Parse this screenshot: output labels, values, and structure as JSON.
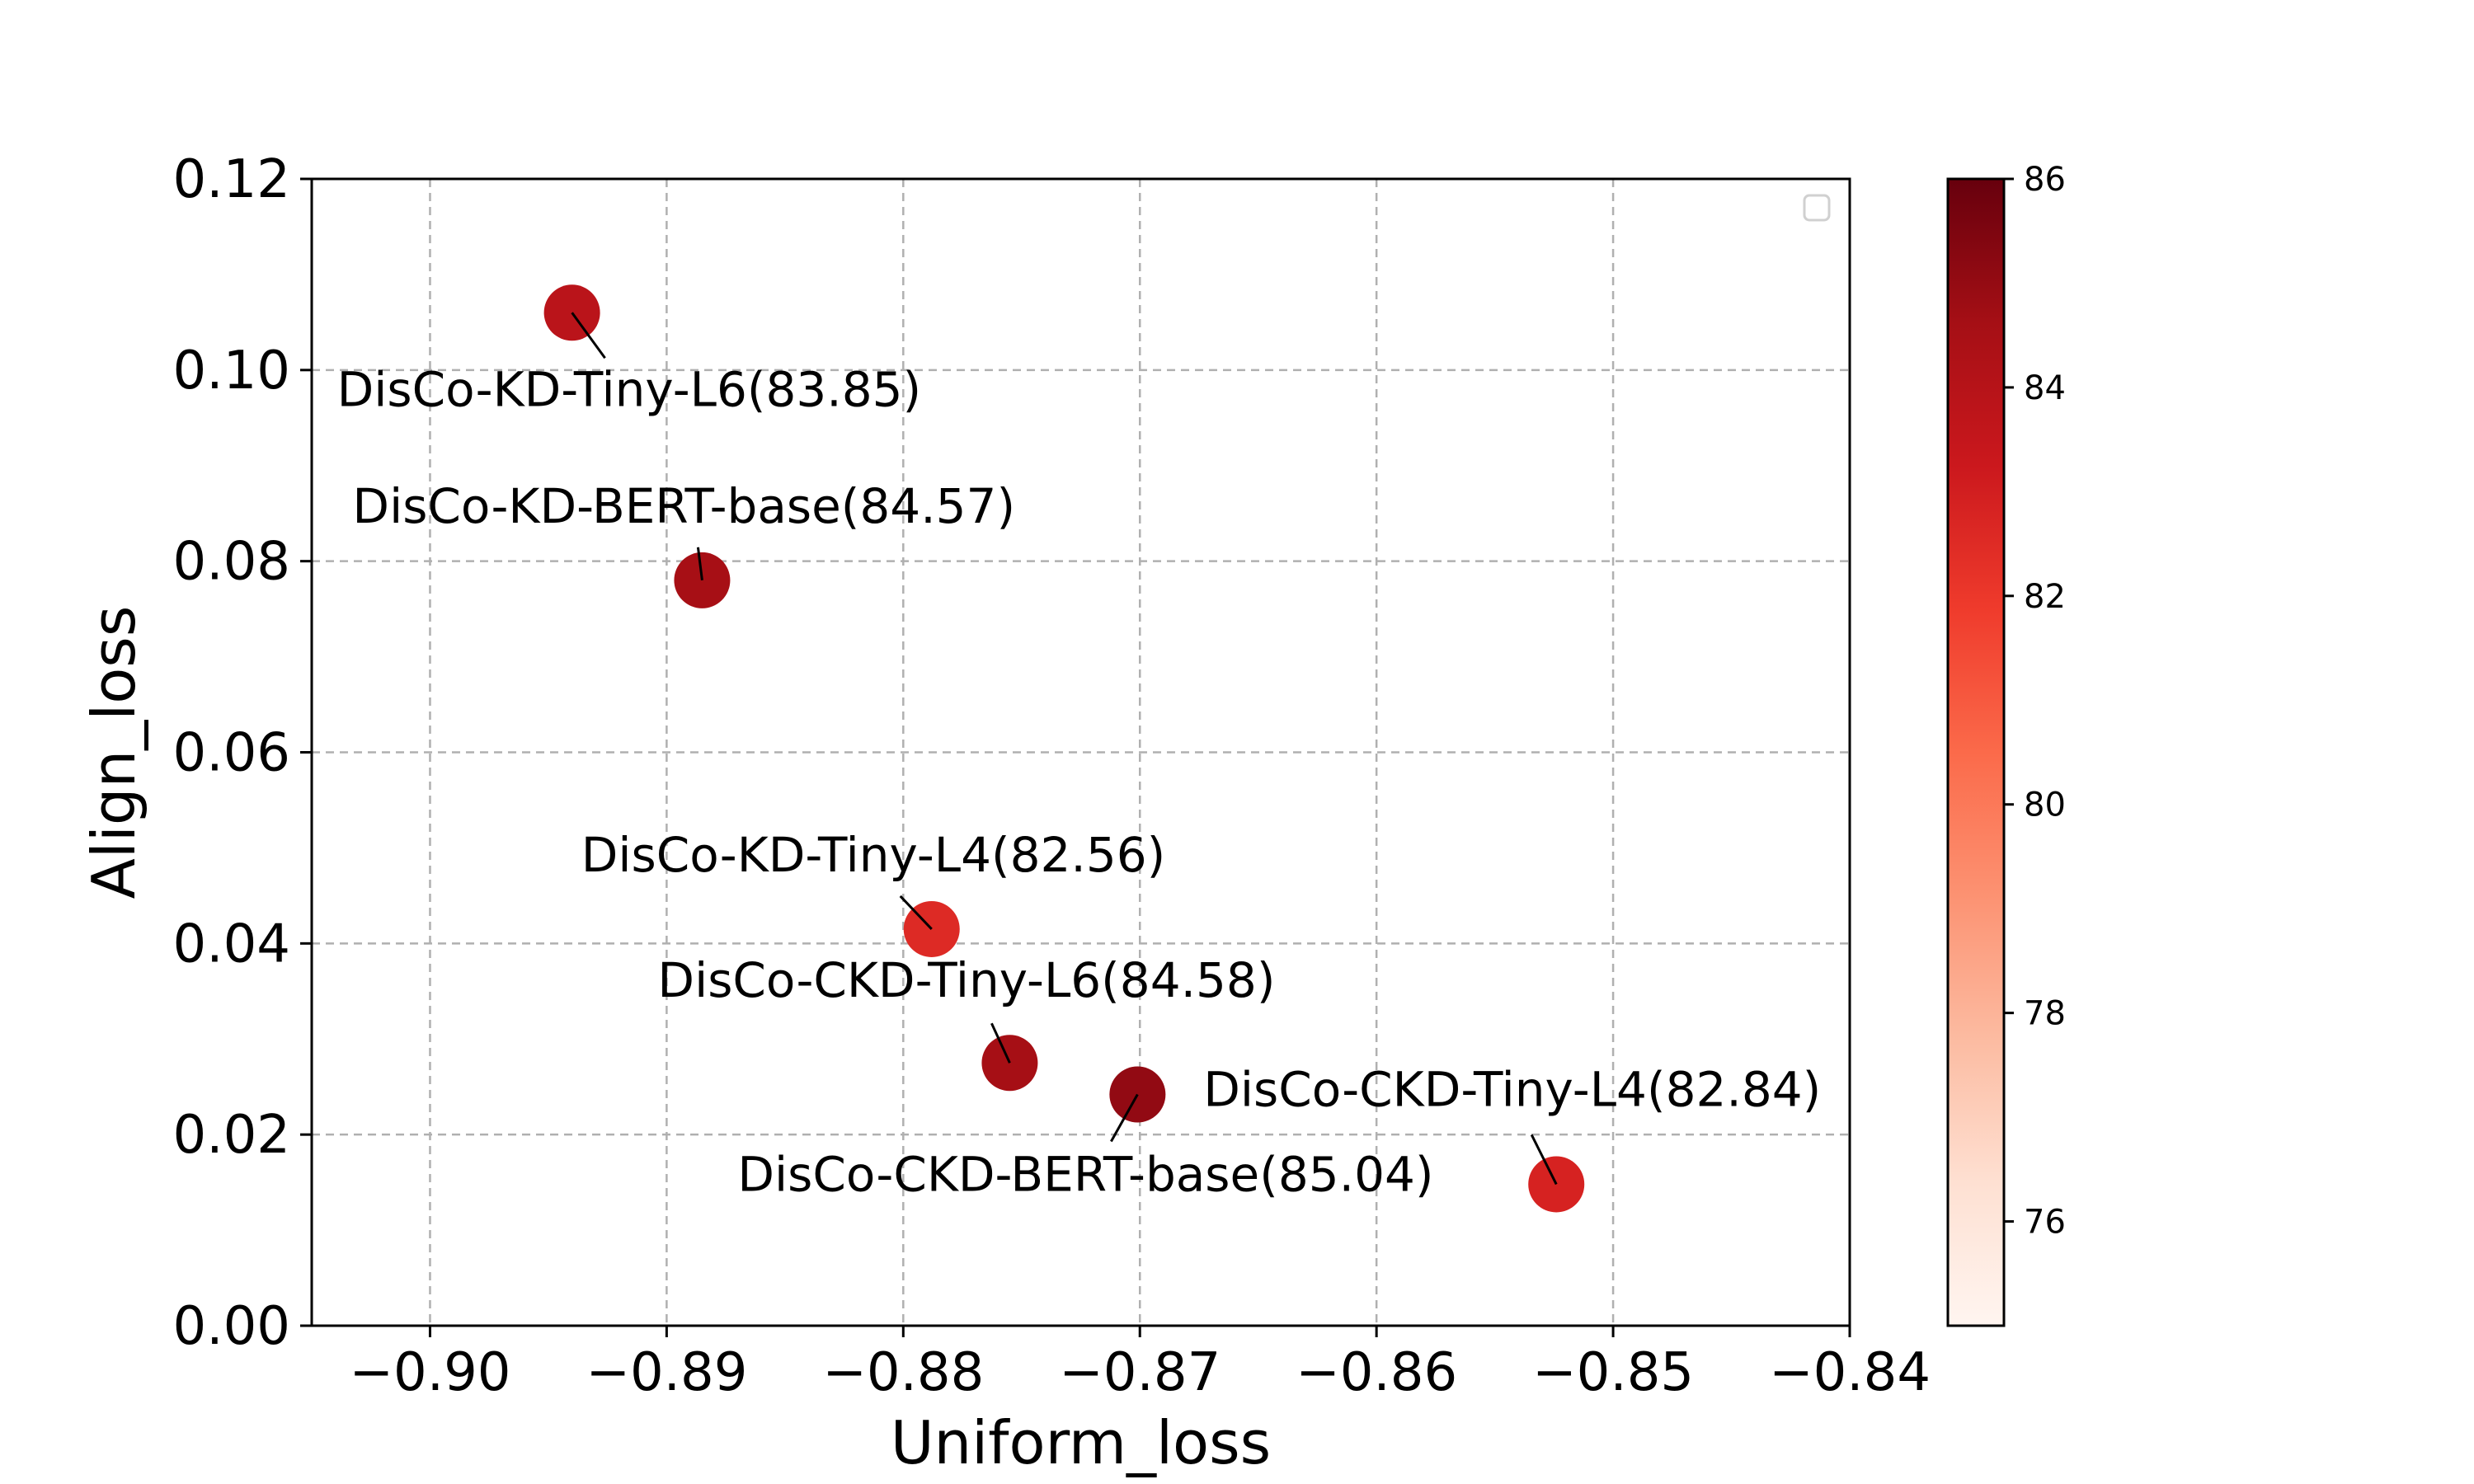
{
  "chart_data": {
    "type": "scatter",
    "title": "",
    "xlabel": "Uniform_loss",
    "ylabel": "Align_loss",
    "xlim": [
      -0.905,
      -0.84
    ],
    "ylim": [
      0.0,
      0.12
    ],
    "xticks": [
      -0.9,
      -0.89,
      -0.88,
      -0.87,
      -0.86,
      -0.85,
      -0.84
    ],
    "xtick_labels": [
      "−0.90",
      "−0.89",
      "−0.88",
      "−0.87",
      "−0.86",
      "−0.85",
      "−0.84"
    ],
    "yticks": [
      0.0,
      0.02,
      0.04,
      0.06,
      0.08,
      0.1,
      0.12
    ],
    "ytick_labels": [
      "0.00",
      "0.02",
      "0.04",
      "0.06",
      "0.08",
      "0.10",
      "0.12"
    ],
    "grid": true,
    "legend": "top-right (empty)",
    "colormap": "Reds",
    "colorbar": {
      "min": 75,
      "max": 86,
      "ticks": [
        76,
        78,
        80,
        82,
        84,
        86
      ],
      "tick_labels": [
        "76",
        "78",
        "80",
        "82",
        "84",
        "86"
      ]
    },
    "points": [
      {
        "name": "DisCo-KD-Tiny-L6",
        "x": -0.894,
        "y": 0.106,
        "score": 83.85,
        "label": "DisCo-KD-Tiny-L6(83.85)",
        "label_anchor": "below-right"
      },
      {
        "name": "DisCo-KD-BERT-base",
        "x": -0.8885,
        "y": 0.078,
        "score": 84.57,
        "label": "DisCo-KD-BERT-base(84.57)",
        "label_anchor": "above"
      },
      {
        "name": "DisCo-KD-Tiny-L4",
        "x": -0.8788,
        "y": 0.0415,
        "score": 82.56,
        "label": "DisCo-KD-Tiny-L4(82.56)",
        "label_anchor": "above-left"
      },
      {
        "name": "DisCo-CKD-Tiny-L6",
        "x": -0.8755,
        "y": 0.0275,
        "score": 84.58,
        "label": "DisCo-CKD-Tiny-L6(84.58)",
        "label_anchor": "above-left"
      },
      {
        "name": "DisCo-CKD-BERT-base",
        "x": -0.8701,
        "y": 0.0242,
        "score": 85.04,
        "label": "DisCo-CKD-BERT-base(85.04)",
        "label_anchor": "below-left"
      },
      {
        "name": "DisCo-CKD-Tiny-L4",
        "x": -0.8524,
        "y": 0.0148,
        "score": 82.84,
        "label": "DisCo-CKD-Tiny-L4(82.84)",
        "label_anchor": "above-left"
      }
    ]
  }
}
